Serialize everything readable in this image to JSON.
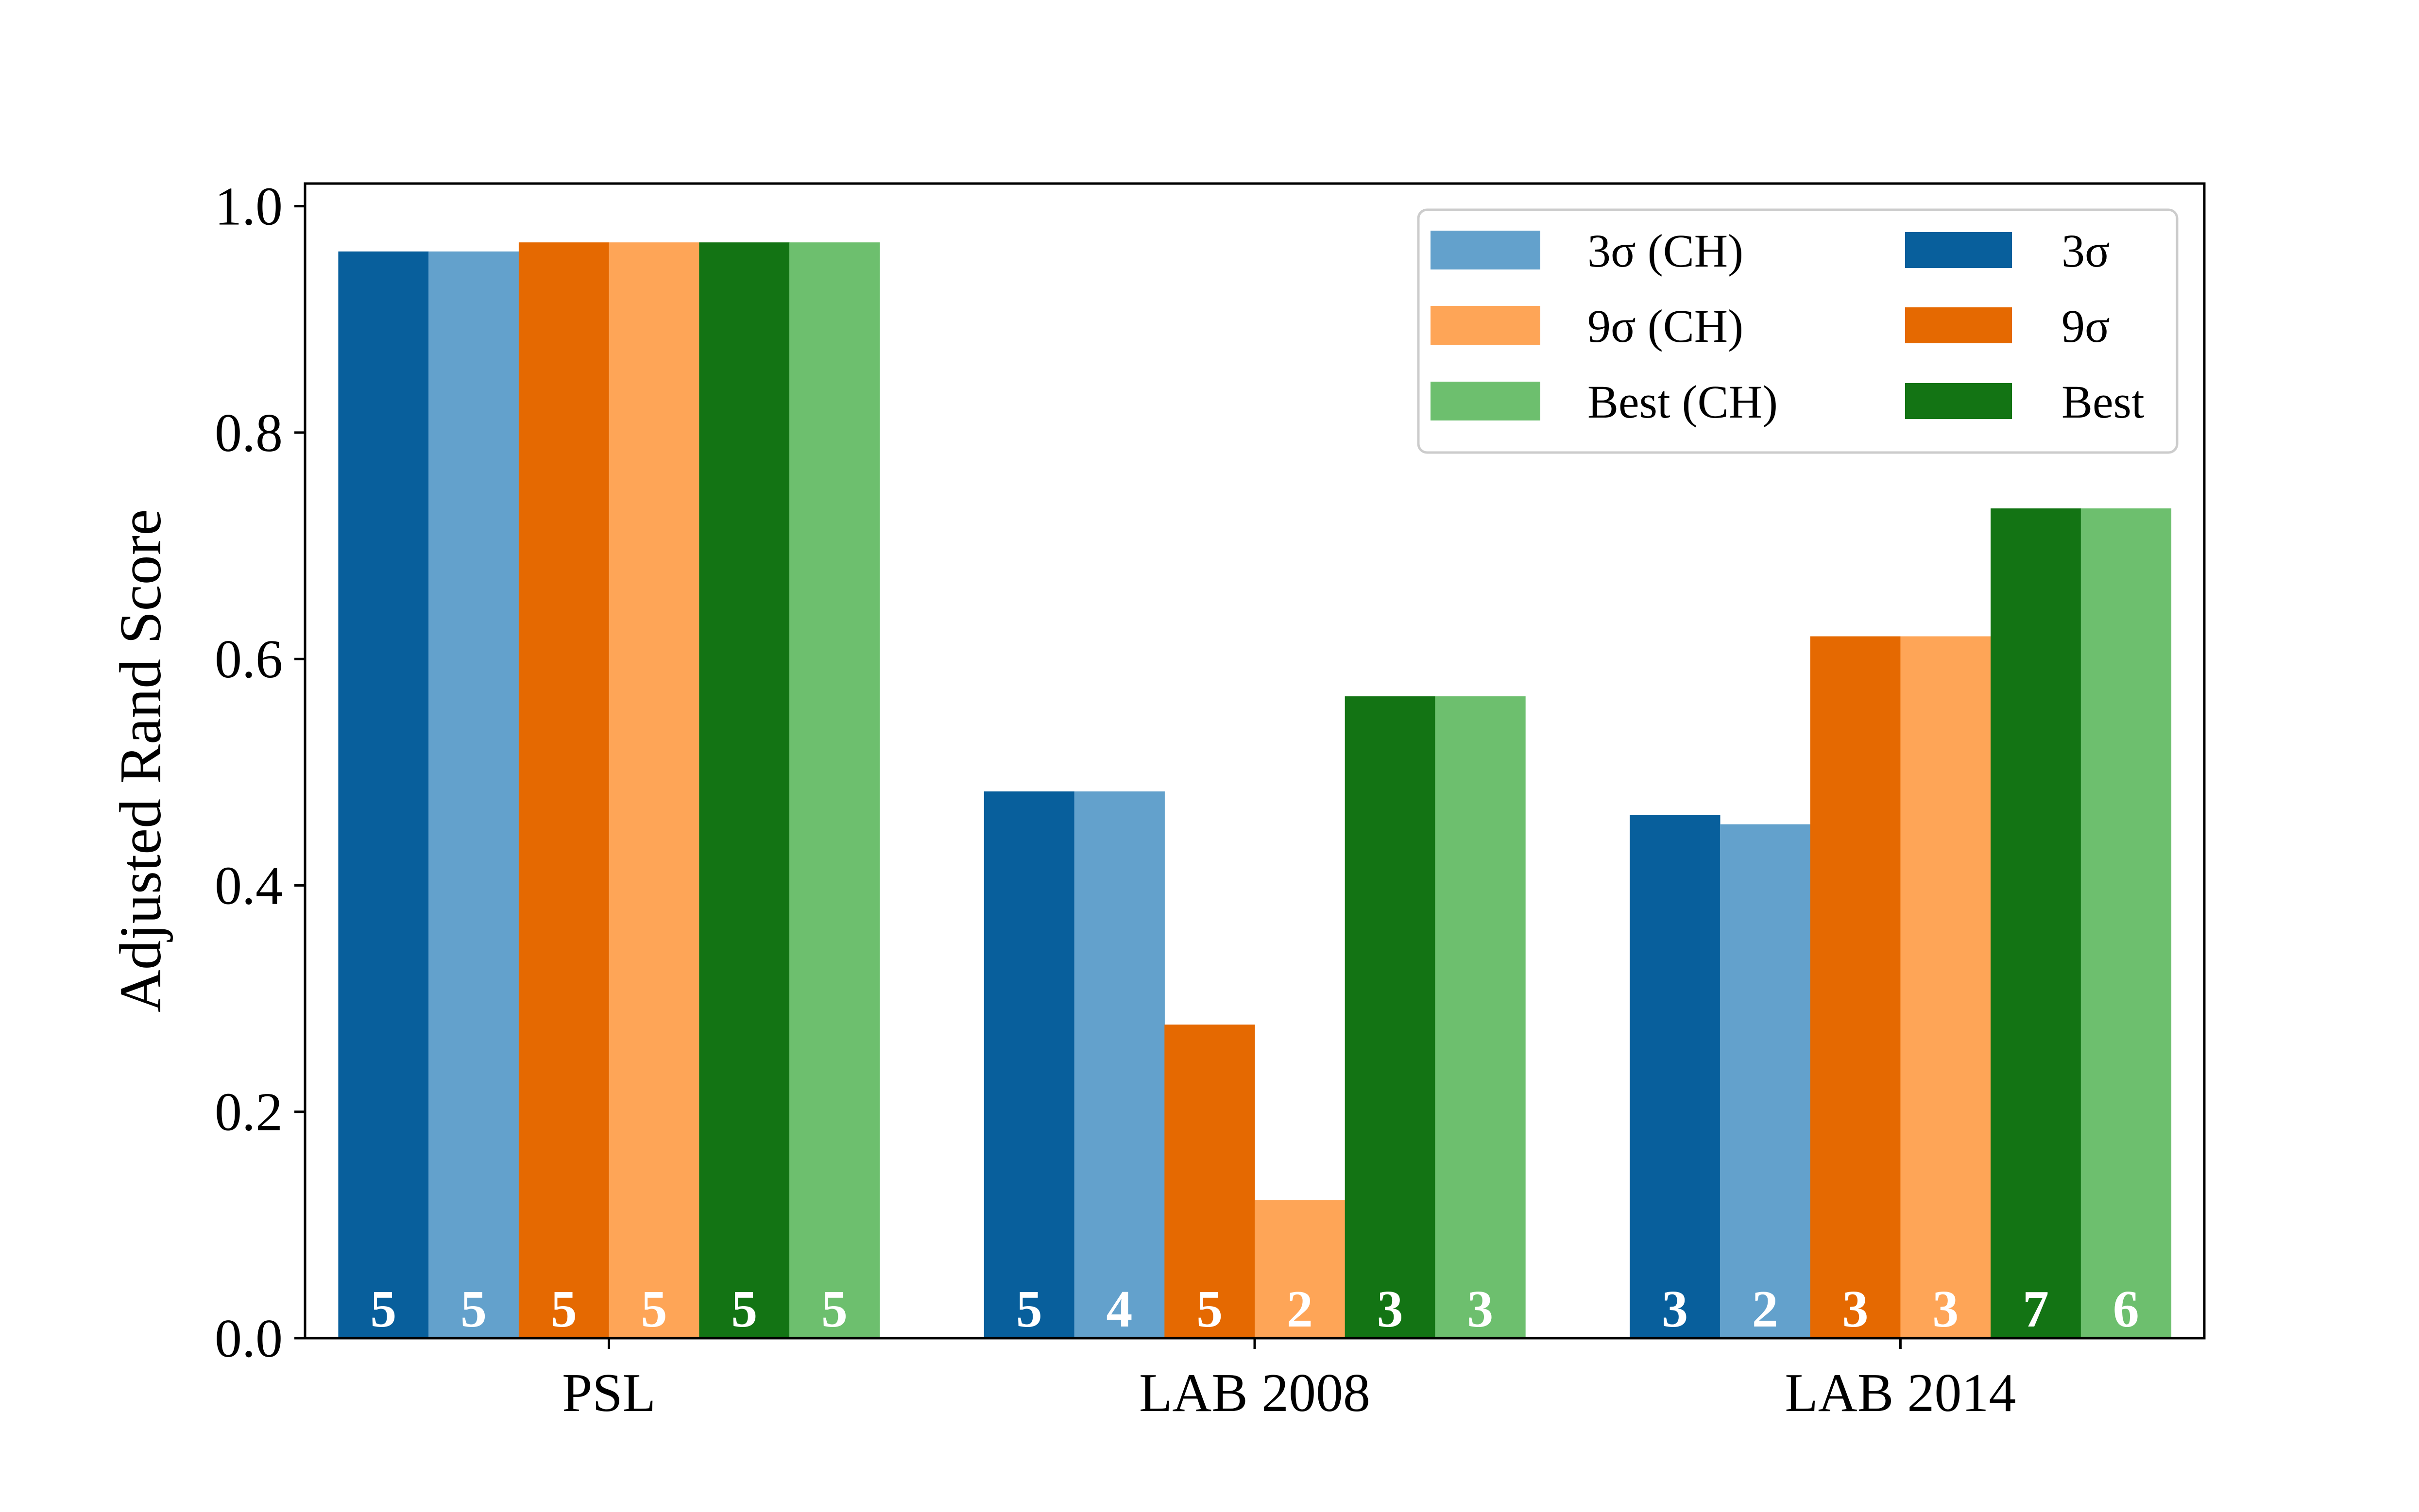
{
  "chart_data": {
    "type": "bar",
    "categories": [
      "PSL",
      "LAB 2008",
      "LAB 2014"
    ],
    "ylabel": "Adjusted Rand Score",
    "xlabel": "",
    "ylim": [
      0,
      1.02
    ],
    "yticks": [
      "0.0",
      "0.2",
      "0.4",
      "0.6",
      "0.8",
      "1.0"
    ],
    "legend_position": "top-right",
    "series": [
      {
        "name": "3σ",
        "color": "#085f9c",
        "values": [
          0.96,
          0.483,
          0.462
        ],
        "labels": [
          "5",
          "5",
          "3"
        ]
      },
      {
        "name": "3σ (CH)",
        "color": "#63a1cc",
        "values": [
          0.96,
          0.483,
          0.454
        ],
        "labels": [
          "5",
          "4",
          "2"
        ]
      },
      {
        "name": "9σ",
        "color": "#e56901",
        "values": [
          0.968,
          0.277,
          0.62
        ],
        "labels": [
          "5",
          "5",
          "3"
        ]
      },
      {
        "name": "9σ (CH)",
        "color": "#fea557",
        "values": [
          0.968,
          0.122,
          0.62
        ],
        "labels": [
          "5",
          "2",
          "3"
        ]
      },
      {
        "name": "Best",
        "color": "#137414",
        "values": [
          0.968,
          0.567,
          0.733
        ],
        "labels": [
          "5",
          "3",
          "7"
        ]
      },
      {
        "name": "Best (CH)",
        "color": "#6dbf6e",
        "values": [
          0.968,
          0.567,
          0.733
        ],
        "labels": [
          "5",
          "3",
          "6"
        ]
      }
    ],
    "legend": [
      {
        "name": "3σ (CH)",
        "color": "#63a1cc"
      },
      {
        "name": "3σ",
        "color": "#085f9c"
      },
      {
        "name": "9σ (CH)",
        "color": "#fea557"
      },
      {
        "name": "9σ",
        "color": "#e56901"
      },
      {
        "name": "Best (CH)",
        "color": "#6dbf6e"
      },
      {
        "name": "Best",
        "color": "#137414"
      }
    ]
  }
}
